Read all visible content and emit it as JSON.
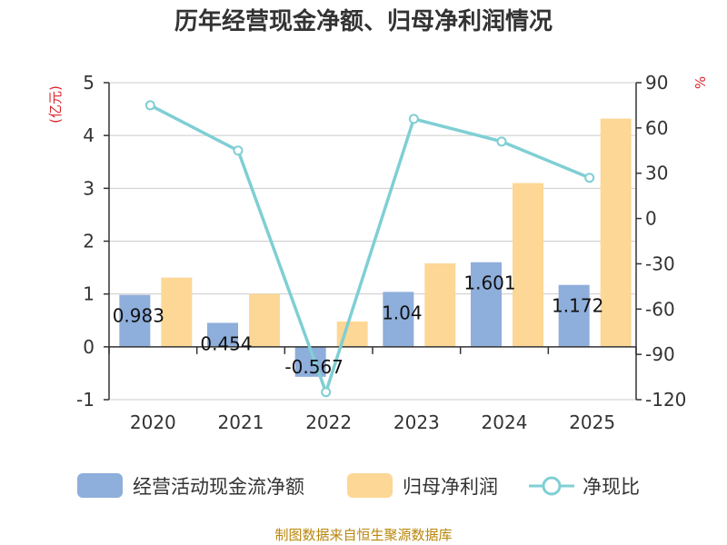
{
  "chart_data": {
    "type": "bar",
    "title": "历年经营现金净额、归母净利润情况",
    "categories": [
      "2020",
      "2021",
      "2022",
      "2023",
      "2024",
      "2025"
    ],
    "series": [
      {
        "name": "经营活动现金流净额",
        "type": "bar",
        "axis": "left",
        "color": "#8eaedb",
        "values": [
          0.983,
          0.454,
          -0.567,
          1.04,
          1.601,
          1.172
        ],
        "labels": [
          "0.983",
          "0.454",
          "-0.567",
          "1.04",
          "1.601",
          "1.172"
        ]
      },
      {
        "name": "归母净利润",
        "type": "bar",
        "axis": "left",
        "color": "#fdd795",
        "values": [
          1.31,
          1.0,
          0.48,
          1.58,
          3.1,
          4.32
        ]
      },
      {
        "name": "净现比",
        "type": "line",
        "axis": "right",
        "color": "#7fcfd4",
        "values": [
          75,
          45,
          -115,
          66,
          51,
          27
        ]
      }
    ],
    "y_left": {
      "label": "(亿元)",
      "min": -1,
      "max": 5,
      "ticks": [
        -1,
        0,
        1,
        2,
        3,
        4,
        5
      ]
    },
    "y_right": {
      "label": "%",
      "min": -120,
      "max": 90,
      "ticks": [
        -120,
        -90,
        -60,
        -30,
        0,
        30,
        60,
        90
      ]
    },
    "grid": true,
    "legend_position": "bottom",
    "source": "制图数据来自恒生聚源数据库"
  }
}
